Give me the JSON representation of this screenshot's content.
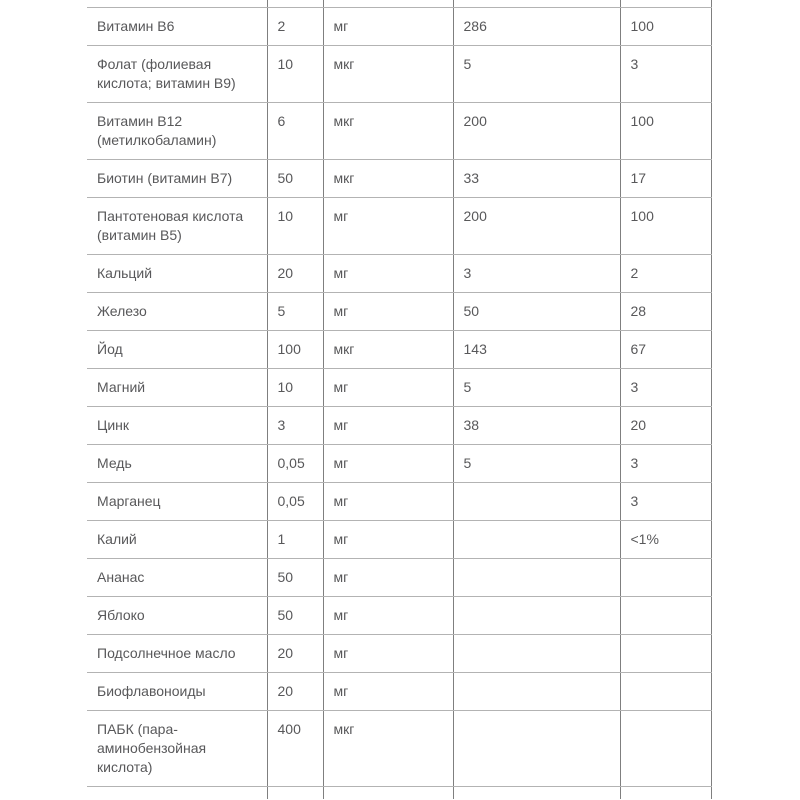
{
  "theme": {
    "page_bg": "#ffffff",
    "text_color": "#58585a",
    "vertical_border_color": "#7f7f7f",
    "horizontal_border_color": "#b3b3b3"
  },
  "table": {
    "rows": [
      {
        "name": "Витамин В6",
        "amount": "2",
        "unit": "мг",
        "percent1": "286",
        "percent2": "100"
      },
      {
        "name": "Фолат (фолиевая кислота; витамин В9)",
        "amount": "10",
        "unit": "мкг",
        "percent1": "5",
        "percent2": "3"
      },
      {
        "name": "Витамин В12 (метилкобаламин)",
        "amount": "6",
        "unit": "мкг",
        "percent1": "200",
        "percent2": "100"
      },
      {
        "name": "Биотин (витамин В7)",
        "amount": "50",
        "unit": "мкг",
        "percent1": "33",
        "percent2": "17"
      },
      {
        "name": "Пантотеновая кислота (витамин В5)",
        "amount": "10",
        "unit": "мг",
        "percent1": "200",
        "percent2": "100"
      },
      {
        "name": "Кальций",
        "amount": "20",
        "unit": "мг",
        "percent1": "3",
        "percent2": "2"
      },
      {
        "name": "Железо",
        "amount": "5",
        "unit": "мг",
        "percent1": "50",
        "percent2": "28"
      },
      {
        "name": "Йод",
        "amount": "100",
        "unit": "мкг",
        "percent1": "143",
        "percent2": "67"
      },
      {
        "name": "Магний",
        "amount": "10",
        "unit": "мг",
        "percent1": "5",
        "percent2": "3"
      },
      {
        "name": "Цинк",
        "amount": "3",
        "unit": "мг",
        "percent1": "38",
        "percent2": "20"
      },
      {
        "name": "Медь",
        "amount": "0,05",
        "unit": "мг",
        "percent1": "5",
        "percent2": "3"
      },
      {
        "name": "Марганец",
        "amount": "0,05",
        "unit": "мг",
        "percent1": "",
        "percent2": "3"
      },
      {
        "name": "Калий",
        "amount": "1",
        "unit": "мг",
        "percent1": "",
        "percent2": "<1%"
      },
      {
        "name": "Ананас",
        "amount": "50",
        "unit": "мг",
        "percent1": "",
        "percent2": ""
      },
      {
        "name": "Яблоко",
        "amount": "50",
        "unit": "мг",
        "percent1": "",
        "percent2": ""
      },
      {
        "name": "Подсолнечное масло",
        "amount": "20",
        "unit": "мг",
        "percent1": "",
        "percent2": ""
      },
      {
        "name": "Биофлавоноиды",
        "amount": "20",
        "unit": "мг",
        "percent1": "",
        "percent2": ""
      },
      {
        "name": "ПАБК (пара-аминобензойная кислота)",
        "amount": "400",
        "unit": "мкг",
        "percent1": "",
        "percent2": ""
      }
    ]
  }
}
